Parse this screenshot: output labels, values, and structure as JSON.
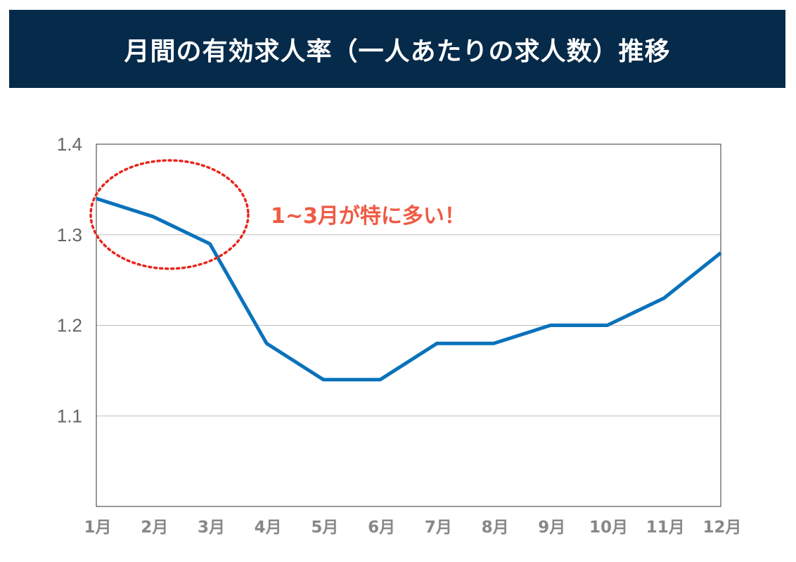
{
  "header": {
    "title": "月間の有効求人率（一人あたりの求人数）推移"
  },
  "chart_data": {
    "type": "line",
    "title": "月間の有効求人率（一人あたりの求人数）推移",
    "categories": [
      "1月",
      "2月",
      "3月",
      "4月",
      "5月",
      "6月",
      "7月",
      "8月",
      "9月",
      "10月",
      "11月",
      "12月"
    ],
    "series": [
      {
        "values": [
          1.34,
          1.32,
          1.29,
          1.18,
          1.14,
          1.14,
          1.18,
          1.18,
          1.2,
          1.2,
          1.23,
          1.28
        ],
        "color": "#0a72bb"
      }
    ],
    "ylim": [
      1.0,
      1.4
    ],
    "yticks": [
      "1.4",
      "1.3",
      "1.2",
      "1.1"
    ],
    "ytick_values": [
      1.4,
      1.3,
      1.2,
      1.1
    ],
    "grid": "horizontal",
    "annotation": {
      "text": "1~3月が特に多い！",
      "color": "#ef5a44",
      "highlight": "dotted red ellipse around 1月–3月",
      "highlight_color": "#e8261c"
    },
    "xlabel": "",
    "ylabel": ""
  }
}
